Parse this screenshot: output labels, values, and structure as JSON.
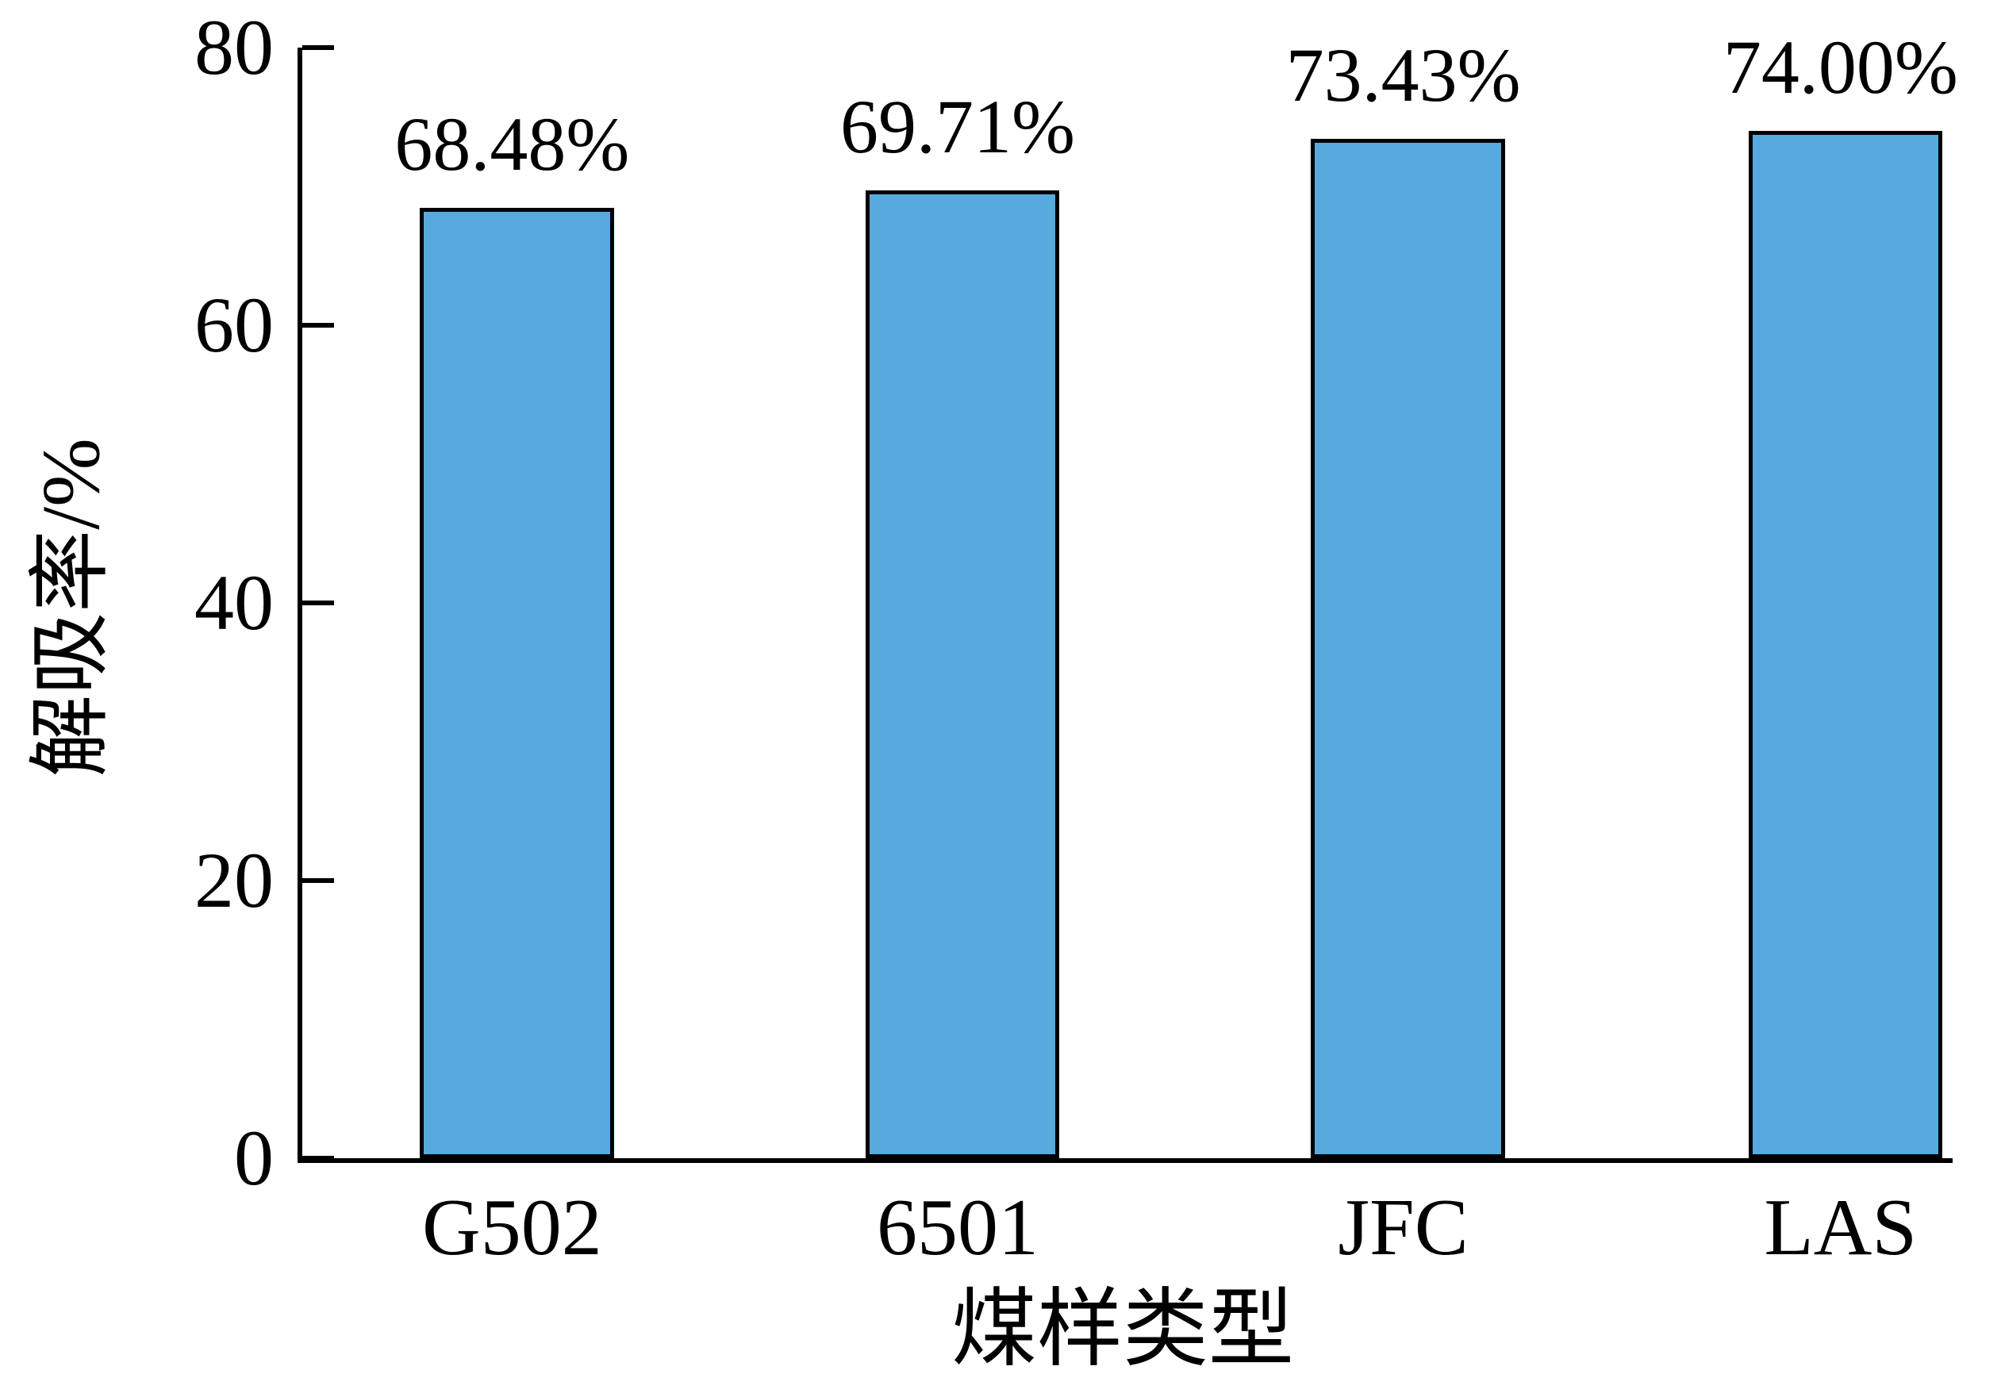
{
  "chart_data": {
    "type": "bar",
    "categories": [
      "G502",
      "6501",
      "JFC",
      "LAS"
    ],
    "values": [
      68.48,
      69.71,
      73.43,
      74.0
    ],
    "value_labels": [
      "68.48%",
      "69.71%",
      "73.43%",
      "74.00%"
    ],
    "title": "",
    "xlabel": "煤样类型",
    "ylabel": "解吸率/%",
    "ylim": [
      0,
      80
    ],
    "yticks": [
      0,
      20,
      40,
      60,
      80
    ],
    "ytick_labels": [
      "0",
      "20",
      "40",
      "60",
      "80"
    ],
    "grid": false,
    "legend": "none",
    "background": "#FFFFFF",
    "bar_color": "#58A9DE",
    "bar_border_color": "#000000",
    "axis_color": "#000000",
    "bar_centers_frac": [
      0.13,
      0.4,
      0.67,
      0.935
    ],
    "bar_width_frac": 0.1175
  }
}
